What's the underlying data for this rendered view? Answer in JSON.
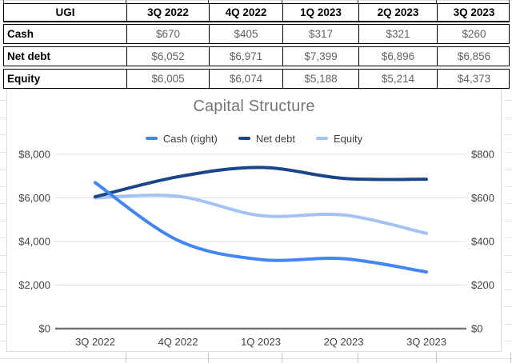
{
  "table": {
    "header": [
      "UGI",
      "3Q 2022",
      "4Q 2022",
      "1Q 2023",
      "2Q 2023",
      "3Q 2023"
    ],
    "rows": [
      {
        "label": "Cash",
        "values": [
          "$670",
          "$405",
          "$317",
          "$321",
          "$260"
        ]
      },
      {
        "label": "Net debt",
        "values": [
          "$6,052",
          "$6,971",
          "$7,399",
          "$6,896",
          "$6,856"
        ]
      },
      {
        "label": "Equity",
        "values": [
          "$6,005",
          "$6,074",
          "$5,188",
          "$5,214",
          "$4,373"
        ]
      }
    ]
  },
  "chart_data": {
    "type": "line",
    "title": "Capital Structure",
    "smooth": true,
    "grid": true,
    "legend_position": "top",
    "categories": [
      "3Q 2022",
      "4Q 2022",
      "1Q 2023",
      "2Q 2023",
      "3Q 2023"
    ],
    "series": [
      {
        "name": "Cash (right)",
        "axis": "right",
        "color": "#4285f4",
        "values": [
          670,
          405,
          317,
          321,
          260
        ]
      },
      {
        "name": "Net debt",
        "axis": "left",
        "color": "#1c4587",
        "values": [
          6052,
          6971,
          7399,
          6896,
          6856
        ]
      },
      {
        "name": "Equity",
        "axis": "left",
        "color": "#a4c2f4",
        "values": [
          6005,
          6074,
          5188,
          5214,
          4373
        ]
      }
    ],
    "left_axis": {
      "min": 0,
      "max": 8000,
      "ticks": [
        "$8,000",
        "$6,000",
        "$4,000",
        "$2,000",
        "$0"
      ]
    },
    "right_axis": {
      "min": 0,
      "max": 800,
      "ticks": [
        "$800",
        "$600",
        "$400",
        "$200",
        "$0"
      ]
    },
    "colors": {
      "gridline": "#e0e0e0",
      "zero_axis": "#757575",
      "title": "#757575",
      "tick_text": "#424242"
    }
  }
}
